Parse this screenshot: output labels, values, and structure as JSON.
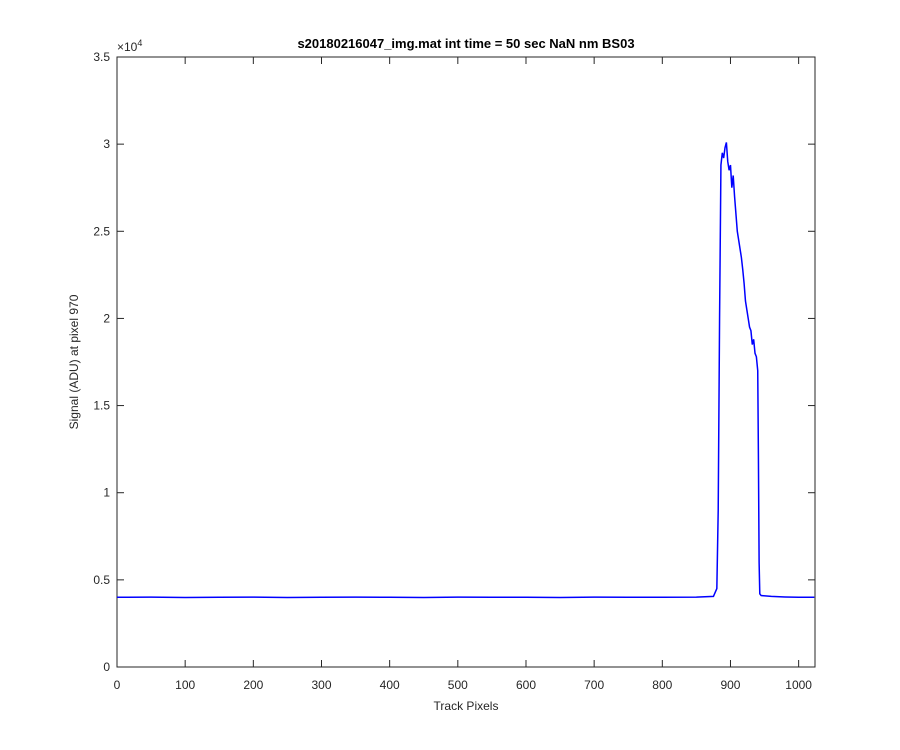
{
  "chart_data": {
    "type": "line",
    "title": "s20180216047_img.mat int time = 50 sec  NaN nm BS03",
    "x_label": "Track Pixels",
    "y_label": "Signal (ADU) at pixel 970",
    "y_multiplier": {
      "base": "×10",
      "exponent": "4"
    },
    "xlim": [
      0,
      1024
    ],
    "ylim": [
      0,
      3.5
    ],
    "xticks": [
      0,
      100,
      200,
      300,
      400,
      500,
      600,
      700,
      800,
      900,
      1000
    ],
    "yticks": [
      0,
      0.5,
      1,
      1.5,
      2,
      2.5,
      3,
      3.5
    ],
    "series": [
      {
        "color": "#0000ff",
        "x": [
          0,
          50,
          100,
          150,
          200,
          250,
          300,
          350,
          400,
          450,
          500,
          550,
          600,
          650,
          700,
          750,
          800,
          850,
          875,
          880,
          882,
          884,
          886,
          888,
          890,
          892,
          894,
          896,
          898,
          900,
          902,
          904,
          906,
          908,
          910,
          912,
          914,
          916,
          918,
          920,
          922,
          924,
          926,
          928,
          930,
          932,
          934,
          936,
          938,
          940,
          941,
          942,
          943,
          945,
          960,
          980,
          1000,
          1023
        ],
        "values": [
          0.4,
          0.401,
          0.399,
          0.4,
          0.401,
          0.399,
          0.4,
          0.401,
          0.4,
          0.399,
          0.401,
          0.4,
          0.4,
          0.399,
          0.401,
          0.4,
          0.4,
          0.401,
          0.405,
          0.45,
          0.9,
          2.0,
          2.88,
          2.95,
          2.92,
          2.98,
          3.01,
          2.9,
          2.85,
          2.88,
          2.75,
          2.82,
          2.7,
          2.6,
          2.5,
          2.45,
          2.4,
          2.35,
          2.28,
          2.2,
          2.1,
          2.05,
          2.0,
          1.95,
          1.93,
          1.85,
          1.88,
          1.8,
          1.78,
          1.7,
          1.2,
          0.6,
          0.42,
          0.41,
          0.405,
          0.402,
          0.4,
          0.4
        ]
      }
    ]
  }
}
